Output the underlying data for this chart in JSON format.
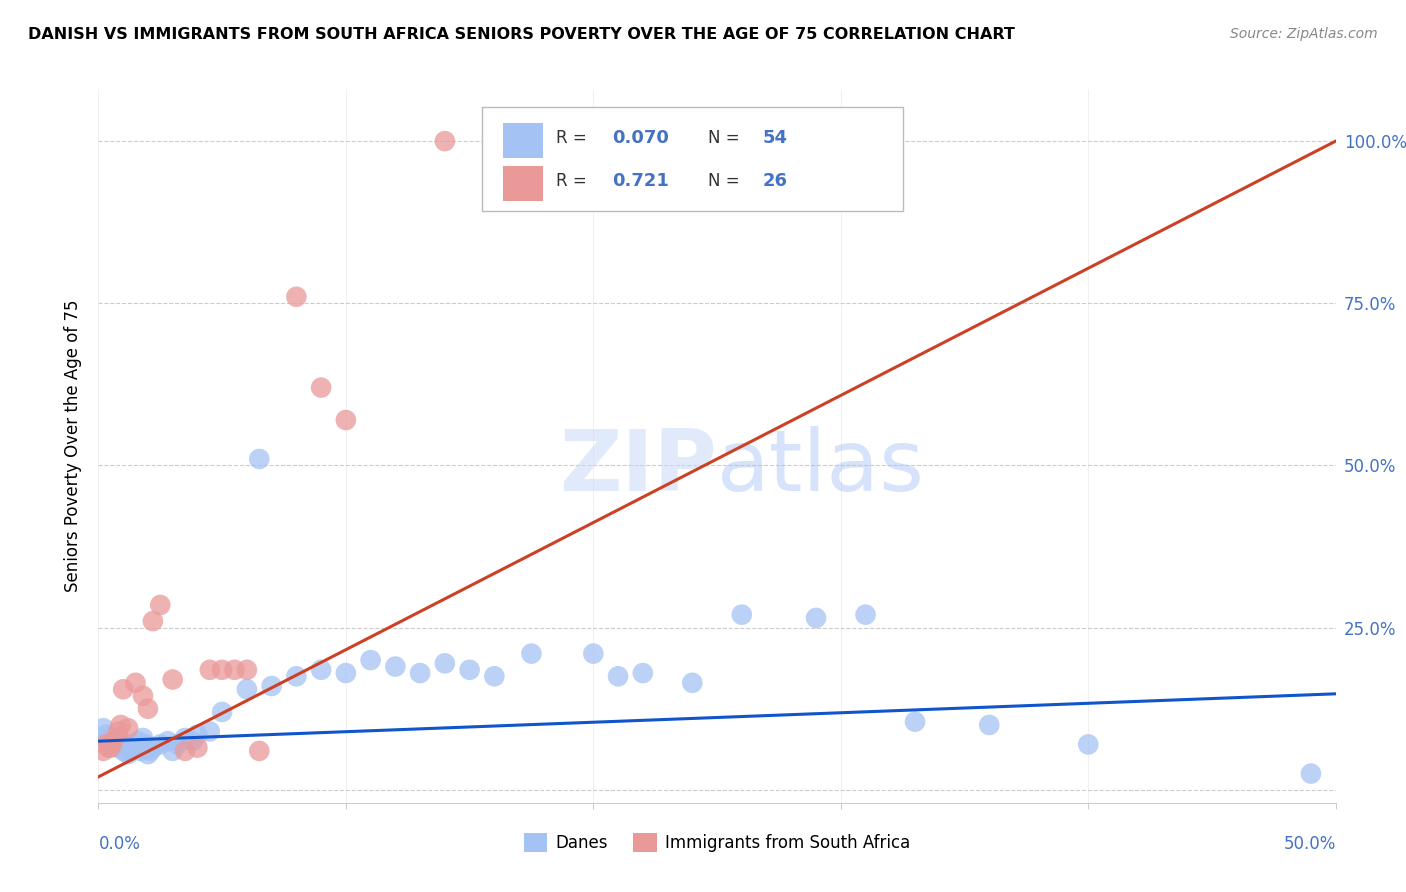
{
  "title": "DANISH VS IMMIGRANTS FROM SOUTH AFRICA SENIORS POVERTY OVER THE AGE OF 75 CORRELATION CHART",
  "source": "Source: ZipAtlas.com",
  "ylabel": "Seniors Poverty Over the Age of 75",
  "watermark": "ZIPatlas",
  "legend_label1": "Danes",
  "legend_label2": "Immigrants from South Africa",
  "xlim": [
    0.0,
    0.5
  ],
  "ylim": [
    -0.02,
    1.08
  ],
  "yticks": [
    0.0,
    0.25,
    0.5,
    0.75,
    1.0
  ],
  "blue_scatter_color": "#a4c2f4",
  "pink_scatter_color": "#ea9999",
  "blue_line_color": "#1155cc",
  "pink_line_color": "#cc4125",
  "axis_color": "#4472c4",
  "grid_color": "#cccccc",
  "background_color": "#ffffff",
  "danes_x": [
    0.002,
    0.003,
    0.004,
    0.005,
    0.006,
    0.007,
    0.008,
    0.009,
    0.01,
    0.011,
    0.012,
    0.013,
    0.014,
    0.015,
    0.016,
    0.017,
    0.018,
    0.019,
    0.02,
    0.021,
    0.022,
    0.025,
    0.028,
    0.03,
    0.032,
    0.035,
    0.038,
    0.04,
    0.045,
    0.05,
    0.06,
    0.065,
    0.07,
    0.08,
    0.09,
    0.1,
    0.11,
    0.12,
    0.13,
    0.14,
    0.15,
    0.16,
    0.175,
    0.2,
    0.21,
    0.22,
    0.24,
    0.26,
    0.29,
    0.31,
    0.33,
    0.36,
    0.4,
    0.49
  ],
  "danes_y": [
    0.095,
    0.085,
    0.08,
    0.075,
    0.07,
    0.08,
    0.065,
    0.075,
    0.06,
    0.07,
    0.055,
    0.06,
    0.07,
    0.065,
    0.075,
    0.06,
    0.08,
    0.07,
    0.055,
    0.06,
    0.065,
    0.07,
    0.075,
    0.06,
    0.07,
    0.08,
    0.075,
    0.085,
    0.09,
    0.12,
    0.155,
    0.51,
    0.16,
    0.175,
    0.185,
    0.18,
    0.2,
    0.19,
    0.18,
    0.195,
    0.185,
    0.175,
    0.21,
    0.21,
    0.175,
    0.18,
    0.165,
    0.27,
    0.265,
    0.27,
    0.105,
    0.1,
    0.07,
    0.025
  ],
  "immigrants_x": [
    0.002,
    0.003,
    0.004,
    0.005,
    0.006,
    0.008,
    0.009,
    0.01,
    0.012,
    0.015,
    0.018,
    0.02,
    0.022,
    0.025,
    0.03,
    0.035,
    0.04,
    0.045,
    0.05,
    0.055,
    0.06,
    0.065,
    0.08,
    0.09,
    0.1,
    0.14
  ],
  "immigrants_y": [
    0.06,
    0.07,
    0.065,
    0.065,
    0.075,
    0.09,
    0.1,
    0.155,
    0.095,
    0.165,
    0.145,
    0.125,
    0.26,
    0.285,
    0.17,
    0.06,
    0.065,
    0.185,
    0.185,
    0.185,
    0.185,
    0.06,
    0.76,
    0.62,
    0.57,
    1.0
  ],
  "danes_trend": [
    0.075,
    0.148
  ],
  "immigrants_trend": [
    0.02,
    1.0
  ]
}
